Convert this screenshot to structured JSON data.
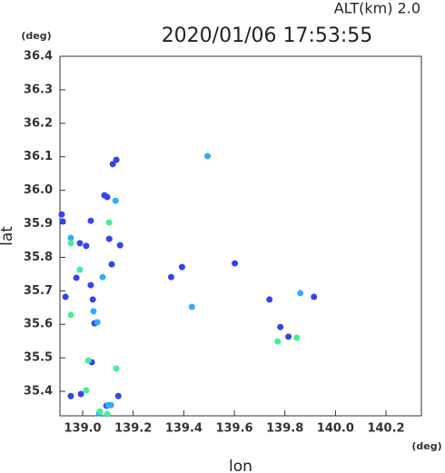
{
  "chart_data": {
    "type": "scatter",
    "title": "2020/01/06 17:53:55",
    "subtitle": "ALT(km) 2.0",
    "x_label": "lon",
    "y_label": "lat",
    "x_unit": "(deg)",
    "y_unit": "(deg)",
    "xlim": [
      138.91,
      140.34
    ],
    "ylim": [
      35.327,
      36.4
    ],
    "xticks": [
      {
        "value": 139,
        "label": "139.0"
      },
      139.2,
      139.4,
      139.6,
      139.8,
      {
        "value": 140,
        "label": "140.0"
      },
      140.2
    ],
    "yticks": [
      36.4,
      36.3,
      36.2,
      36.1,
      {
        "value": 36,
        "label": "36.0"
      },
      35.9,
      35.8,
      35.7,
      35.6,
      35.5,
      35.4
    ],
    "series": [
      {
        "color": "#3344ee",
        "x": [
          139.133,
          139.119,
          139.086,
          139.097,
          138.917,
          138.921,
          139.032,
          138.989,
          139.014,
          139.105,
          139.148,
          138.975,
          139.032,
          139.04,
          138.932,
          139.047,
          139.036,
          138.993,
          138.953,
          139.141,
          139.094,
          139.814,
          139.782,
          139.739,
          139.915,
          139.602,
          139.393,
          139.35,
          139.115
        ],
        "values": [
          36.091,
          36.078,
          35.985,
          35.98,
          35.928,
          35.907,
          35.909,
          35.842,
          35.834,
          35.855,
          35.836,
          35.739,
          35.717,
          35.674,
          35.682,
          35.603,
          35.487,
          35.392,
          35.386,
          35.386,
          35.357,
          35.563,
          35.592,
          35.674,
          35.682,
          35.782,
          35.771,
          35.741,
          35.779
        ]
      },
      {
        "color": "#33aaff",
        "x": [
          139.494,
          139.13,
          139.043,
          139.079,
          139.058,
          139.112,
          139.065,
          139.861,
          139.432,
          138.953,
          139.101
        ],
        "values": [
          36.102,
          35.969,
          35.639,
          35.741,
          35.606,
          35.359,
          35.335,
          35.693,
          35.652,
          35.858,
          35.359
        ]
      },
      {
        "color": "#44ee99",
        "x": [
          139.105,
          138.989,
          138.953,
          139.022,
          139.133,
          139.014,
          139.068,
          139.771,
          139.847,
          138.953,
          139.097
        ],
        "values": [
          35.904,
          35.763,
          35.628,
          35.492,
          35.468,
          35.403,
          35.34,
          35.549,
          35.56,
          35.842,
          35.332
        ]
      }
    ]
  }
}
